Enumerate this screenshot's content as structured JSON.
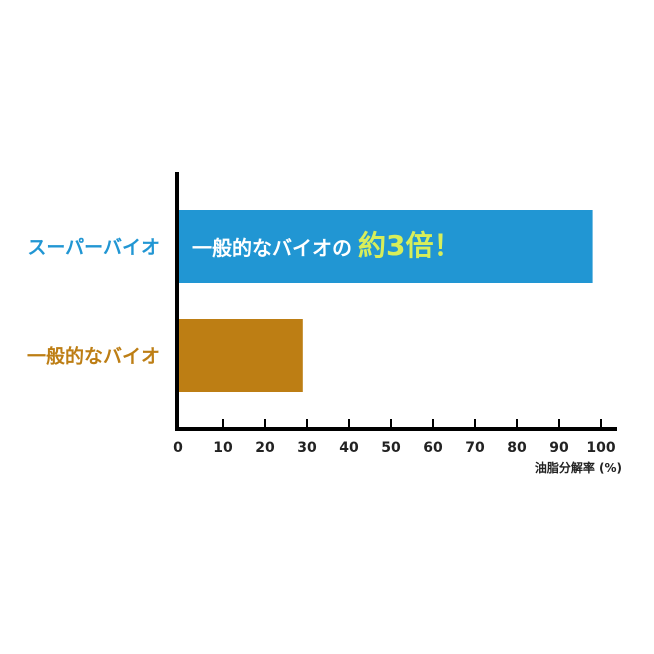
{
  "chart_data": {
    "type": "bar",
    "orientation": "horizontal",
    "categories": [
      "スーパーバイオ",
      "一般的なバイオ"
    ],
    "values": [
      98,
      29
    ],
    "colors": [
      "#2196d3",
      "#bd7e14"
    ],
    "category_label_colors": [
      "#2196d3",
      "#bd7e14"
    ],
    "xlabel": "油脂分解率 (%)",
    "xlim": [
      0,
      100
    ],
    "xticks": [
      "0",
      "10",
      "20",
      "30",
      "40",
      "50",
      "60",
      "70",
      "80",
      "90",
      "100"
    ],
    "annotation": {
      "prefix": "一般的なバイオの",
      "highlight": "約3倍！",
      "highlight_color": "#d7ee5a",
      "prefix_color": "#ffffff"
    },
    "grid": false,
    "legend": "none"
  }
}
